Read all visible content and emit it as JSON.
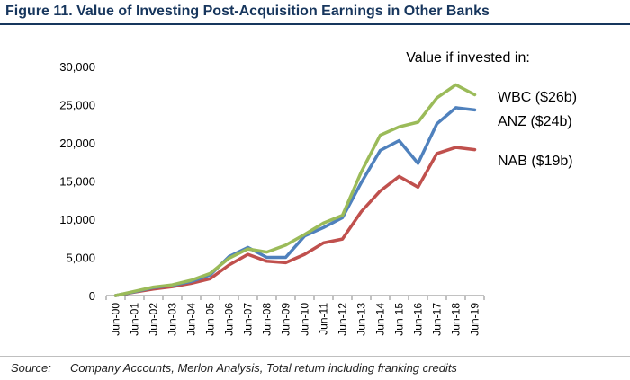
{
  "figure": {
    "title": "Figure 11. Value of Investing Post-Acquisition Earnings in Other Banks"
  },
  "source": {
    "label": "Source:",
    "text": "Company Accounts, Merlon Analysis, Total return including franking credits"
  },
  "chart_data": {
    "type": "line",
    "title": "Value if invested in:",
    "xlabel": "",
    "ylabel": "",
    "categories": [
      "Jun-00",
      "Jun-01",
      "Jun-02",
      "Jun-03",
      "Jun-04",
      "Jun-05",
      "Jun-06",
      "Jun-07",
      "Jun-08",
      "Jun-09",
      "Jun-10",
      "Jun-11",
      "Jun-12",
      "Jun-13",
      "Jun-14",
      "Jun-15",
      "Jun-16",
      "Jun-17",
      "Jun-18",
      "Jun-19"
    ],
    "ylim": [
      0,
      30000
    ],
    "yticks": [
      0,
      5000,
      10000,
      15000,
      20000,
      25000,
      30000
    ],
    "ytick_labels": [
      "0",
      "5,000",
      "10,000",
      "15,000",
      "20,000",
      "25,000",
      "30,000"
    ],
    "grid": false,
    "legend": "series labels at line ends (right)",
    "series": [
      {
        "name": "WBC ($26b)",
        "color": "#9bbb59",
        "values": [
          0,
          550,
          1100,
          1400,
          2000,
          2900,
          4900,
          6100,
          5700,
          6600,
          8000,
          9500,
          10500,
          16200,
          21000,
          22100,
          22700,
          25900,
          27600,
          26300
        ]
      },
      {
        "name": "ANZ ($24b)",
        "color": "#4f81bd",
        "values": [
          0,
          500,
          1050,
          1350,
          1850,
          2700,
          5100,
          6300,
          5000,
          5000,
          7800,
          8900,
          10200,
          14800,
          19000,
          20300,
          17300,
          22500,
          24600,
          24300
        ]
      },
      {
        "name": "NAB ($19b)",
        "color": "#c0504d",
        "values": [
          0,
          450,
          850,
          1150,
          1600,
          2200,
          4000,
          5400,
          4500,
          4300,
          5400,
          6900,
          7400,
          11000,
          13700,
          15600,
          14200,
          18600,
          19400,
          19100
        ]
      }
    ]
  }
}
